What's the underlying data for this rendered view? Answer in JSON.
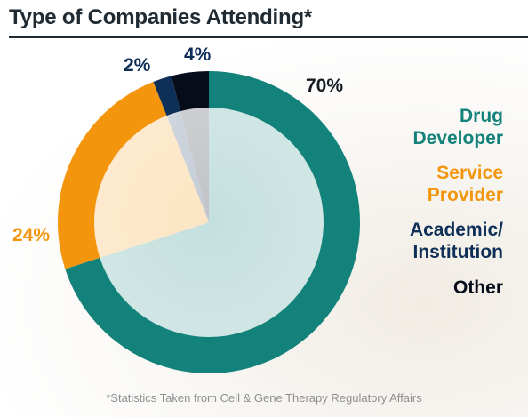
{
  "title": "Type of Companies Attending*",
  "footnote": "*Statistics Taken from Cell & Gene Therapy Regulatory Affairs",
  "colors": {
    "drug": "#12827a",
    "service": "#f4960d",
    "academic": "#0e2f57",
    "other": "#060c1a",
    "title": "#1f2a33"
  },
  "chart_data": {
    "type": "pie",
    "title": "Type of Companies Attending*",
    "categories": [
      "Drug Developer",
      "Service Provider",
      "Academic/ Institution",
      "Other"
    ],
    "values": [
      70,
      24,
      2,
      4
    ],
    "labels": [
      "70%",
      "24%",
      "2%",
      "4%"
    ],
    "legend_position": "right"
  },
  "legend": {
    "drug": [
      "Drug",
      "Developer"
    ],
    "service": [
      "Service",
      "Provider"
    ],
    "academic": [
      "Academic/",
      "Institution"
    ],
    "other": [
      "Other"
    ]
  }
}
